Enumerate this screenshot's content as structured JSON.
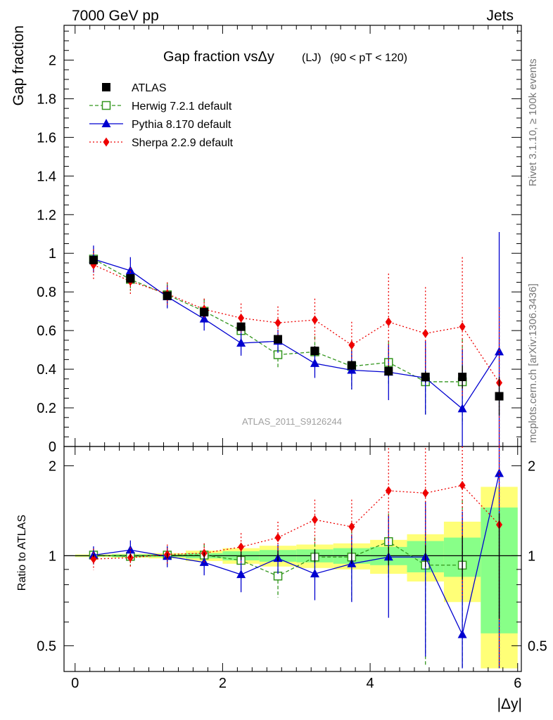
{
  "header": {
    "left": "7000 GeV pp",
    "right": "Jets"
  },
  "side_labels": {
    "rivet": "Rivet 3.1.10, ≥ 100k events",
    "mcplots": "mcplots.cern.ch [arXiv:1306.3436]"
  },
  "chart_data": {
    "type": "line",
    "title_main": "Gap fraction vsΔy",
    "title_lj": "(LJ)",
    "title_range": "(90 < pT < 120)",
    "watermark": "ATLAS_2011_S9126244",
    "ylabel_main": "Gap fraction",
    "ylabel_ratio": "Ratio to ATLAS",
    "xlabel": "|Δy|",
    "xlim": [
      -0.15,
      6.05
    ],
    "ylim_main": [
      0,
      2.18
    ],
    "ylim_ratio": [
      0.41,
      2.32
    ],
    "x_ticks": [
      0,
      2,
      4,
      6
    ],
    "y_ticks_main": [
      0,
      0.2,
      0.4,
      0.6,
      0.8,
      1,
      1.2,
      1.4,
      1.6,
      1.8,
      2
    ],
    "y_ticks_main_labels": [
      "0",
      "0.2",
      "0.4",
      "0.6",
      "0.8",
      "1",
      "1.2",
      "1.4",
      "1.6",
      "1.8",
      "2"
    ],
    "y_ticks_ratio": [
      0.5,
      1,
      2
    ],
    "y_ticks_ratio_labels": [
      "0.5",
      "1",
      "2"
    ],
    "x": [
      0.25,
      0.75,
      1.25,
      1.75,
      2.25,
      2.75,
      3.25,
      3.75,
      4.25,
      4.75,
      5.25,
      5.75
    ],
    "bin_edges": [
      0,
      0.5,
      1,
      1.5,
      2,
      2.5,
      3,
      3.5,
      4,
      4.5,
      5,
      5.5,
      6
    ],
    "band_1sigma": [
      0.005,
      0.01,
      0.01,
      0.02,
      0.035,
      0.045,
      0.05,
      0.06,
      0.07,
      0.12,
      0.15,
      0.45
    ],
    "band_2sigma": [
      0.01,
      0.015,
      0.02,
      0.04,
      0.06,
      0.08,
      0.09,
      0.1,
      0.13,
      0.18,
      0.3,
      0.7
    ],
    "series": [
      {
        "name": "ATLAS",
        "color": "#000000",
        "marker": "square-filled",
        "line": "none",
        "values": [
          0.965,
          0.87,
          0.78,
          0.695,
          0.62,
          0.555,
          0.495,
          0.42,
          0.39,
          0.36,
          0.36,
          0.26
        ],
        "errors": [
          0.01,
          0.012,
          0.015,
          0.018,
          0.02,
          0.022,
          0.025,
          0.025,
          0.028,
          0.03,
          0.06,
          0.1
        ]
      },
      {
        "name": "Herwig 7.2.1 default",
        "color": "#33961e",
        "marker": "square-open",
        "line": "dashed",
        "values": [
          0.97,
          0.865,
          0.785,
          0.7,
          0.6,
          0.475,
          0.49,
          0.415,
          0.435,
          0.335,
          0.335,
          null
        ],
        "errors": [
          0.045,
          0.06,
          0.06,
          0.065,
          0.08,
          0.07,
          0.08,
          0.12,
          0.11,
          0.17,
          0.22,
          null
        ],
        "ratio": [
          1.005,
          0.995,
          1.005,
          1.005,
          0.965,
          0.855,
          0.99,
          0.99,
          1.115,
          0.93,
          0.93,
          null
        ],
        "ratio_errors": [
          0.05,
          0.07,
          0.07,
          0.09,
          0.13,
          0.13,
          0.16,
          0.28,
          0.27,
          0.5,
          0.6,
          null
        ]
      },
      {
        "name": "Pythia 8.170 default",
        "color": "#0000d0",
        "marker": "triangle-filled",
        "line": "solid",
        "values": [
          0.97,
          0.91,
          0.775,
          0.66,
          0.535,
          0.545,
          0.43,
          0.395,
          0.385,
          0.355,
          0.195,
          0.49
        ],
        "errors": [
          0.07,
          0.07,
          0.06,
          0.06,
          0.065,
          0.06,
          0.075,
          0.1,
          0.145,
          0.19,
          0.31,
          0.62
        ],
        "ratio": [
          1.005,
          1.045,
          0.995,
          0.95,
          0.865,
          0.98,
          0.87,
          0.94,
          0.99,
          0.99,
          0.545,
          1.885
        ],
        "ratio_errors": [
          0.07,
          0.08,
          0.08,
          0.09,
          0.11,
          0.11,
          0.16,
          0.24,
          0.37,
          0.53,
          0.86,
          2.4
        ]
      },
      {
        "name": "Sherpa 2.2.9 default",
        "color": "#ee0000",
        "marker": "diamond-filled",
        "line": "dotted",
        "values": [
          0.94,
          0.855,
          0.79,
          0.71,
          0.665,
          0.64,
          0.655,
          0.525,
          0.645,
          0.585,
          0.62,
          0.33
        ],
        "errors": [
          0.08,
          0.07,
          0.06,
          0.055,
          0.075,
          0.085,
          0.11,
          0.12,
          0.25,
          0.24,
          0.36,
          0.39
        ],
        "ratio": [
          0.975,
          0.985,
          1.01,
          1.02,
          1.07,
          1.15,
          1.32,
          1.25,
          1.65,
          1.62,
          1.72,
          1.27
        ],
        "ratio_errors": [
          0.08,
          0.08,
          0.08,
          0.08,
          0.12,
          0.15,
          0.22,
          0.29,
          0.64,
          0.67,
          1.0,
          1.5
        ]
      }
    ]
  }
}
